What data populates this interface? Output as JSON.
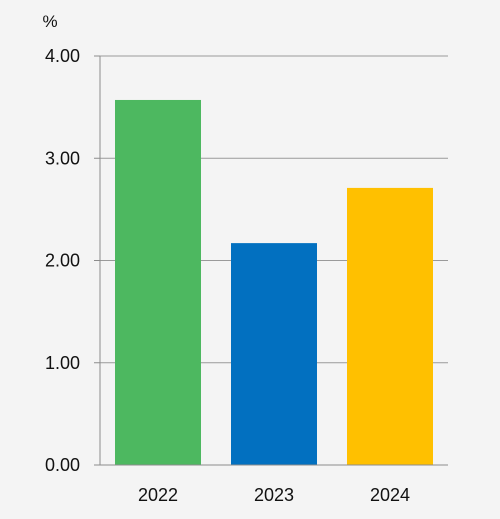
{
  "chart_data": {
    "type": "bar",
    "categories": [
      "2022",
      "2023",
      "2024"
    ],
    "values": [
      3.57,
      2.17,
      2.71
    ],
    "colors": [
      "#4db860",
      "#0270c0",
      "#ffc000"
    ],
    "ylabel": "%",
    "ylim": [
      0,
      4
    ],
    "yticks": [
      0,
      1,
      2,
      3,
      4
    ],
    "ytick_labels": [
      "0.00",
      "1.00",
      "2.00",
      "3.00",
      "4.00"
    ],
    "grid": true,
    "legend": "none"
  }
}
